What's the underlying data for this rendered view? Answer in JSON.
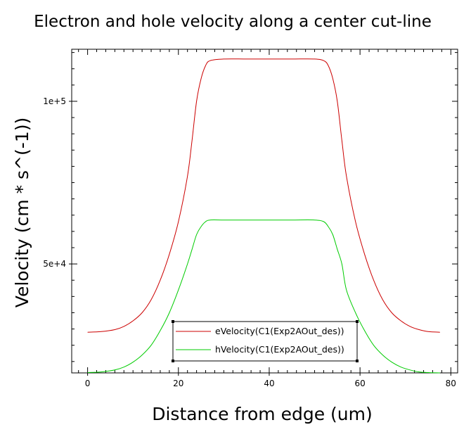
{
  "chart_data": {
    "type": "line",
    "title": "Electron and hole velocity along a center cut-line",
    "xlabel": "Distance from edge (um)",
    "ylabel": "Velocity (cm * s^(-1))",
    "xlim": [
      -3.5,
      81.5
    ],
    "ylim": [
      16500,
      116000
    ],
    "x_ticks": [
      0,
      20,
      40,
      60,
      80
    ],
    "x_tick_labels": [
      "0",
      "20",
      "40",
      "60",
      "80"
    ],
    "y_ticks": [
      50000,
      100000
    ],
    "y_tick_labels": [
      "5e+4",
      "1e+5"
    ],
    "grid": false,
    "legend_position": "bottom-center",
    "series": [
      {
        "name": "eVelocity(C1(Exp2AOut_des))",
        "color": "#cc0000",
        "points": [
          [
            0,
            29000
          ],
          [
            3,
            29200
          ],
          [
            6,
            29800
          ],
          [
            8,
            30800
          ],
          [
            10,
            32500
          ],
          [
            12,
            35000
          ],
          [
            14,
            39000
          ],
          [
            16,
            45000
          ],
          [
            18,
            53000
          ],
          [
            20,
            63000
          ],
          [
            22,
            77000
          ],
          [
            23,
            88000
          ],
          [
            24,
            100000
          ],
          [
            25,
            107000
          ],
          [
            26,
            111000
          ],
          [
            27,
            112500
          ],
          [
            30,
            113000
          ],
          [
            35,
            113000
          ],
          [
            40,
            113000
          ],
          [
            45,
            113000
          ],
          [
            50,
            113000
          ],
          [
            52,
            112500
          ],
          [
            53,
            111000
          ],
          [
            54,
            107000
          ],
          [
            55,
            100000
          ],
          [
            56,
            88000
          ],
          [
            57,
            77000
          ],
          [
            59,
            63000
          ],
          [
            61,
            53000
          ],
          [
            63,
            45000
          ],
          [
            65,
            39000
          ],
          [
            67,
            35000
          ],
          [
            69,
            32500
          ],
          [
            71,
            30800
          ],
          [
            73,
            29800
          ],
          [
            75,
            29200
          ],
          [
            77.6,
            29000
          ]
        ]
      },
      {
        "name": "hVelocity(C1(Exp2AOut_des))",
        "color": "#00cc00",
        "points": [
          [
            0,
            16600
          ],
          [
            3,
            16800
          ],
          [
            6,
            17400
          ],
          [
            8,
            18300
          ],
          [
            10,
            19800
          ],
          [
            12,
            22000
          ],
          [
            14,
            25000
          ],
          [
            16,
            29500
          ],
          [
            18,
            35000
          ],
          [
            20,
            42000
          ],
          [
            22,
            50000
          ],
          [
            23,
            54500
          ],
          [
            24,
            59000
          ],
          [
            25,
            61500
          ],
          [
            26,
            63000
          ],
          [
            27,
            63500
          ],
          [
            30,
            63500
          ],
          [
            35,
            63500
          ],
          [
            40,
            63500
          ],
          [
            45,
            63500
          ],
          [
            50,
            63500
          ],
          [
            52,
            63000
          ],
          [
            53,
            61500
          ],
          [
            54,
            59000
          ],
          [
            55,
            54500
          ],
          [
            56,
            50000
          ],
          [
            57,
            42000
          ],
          [
            59,
            35000
          ],
          [
            61,
            29500
          ],
          [
            63,
            25000
          ],
          [
            65,
            22000
          ],
          [
            67,
            19800
          ],
          [
            69,
            18300
          ],
          [
            71,
            17400
          ],
          [
            73,
            16800
          ],
          [
            75,
            16600
          ],
          [
            77.6,
            16500
          ]
        ]
      }
    ]
  }
}
